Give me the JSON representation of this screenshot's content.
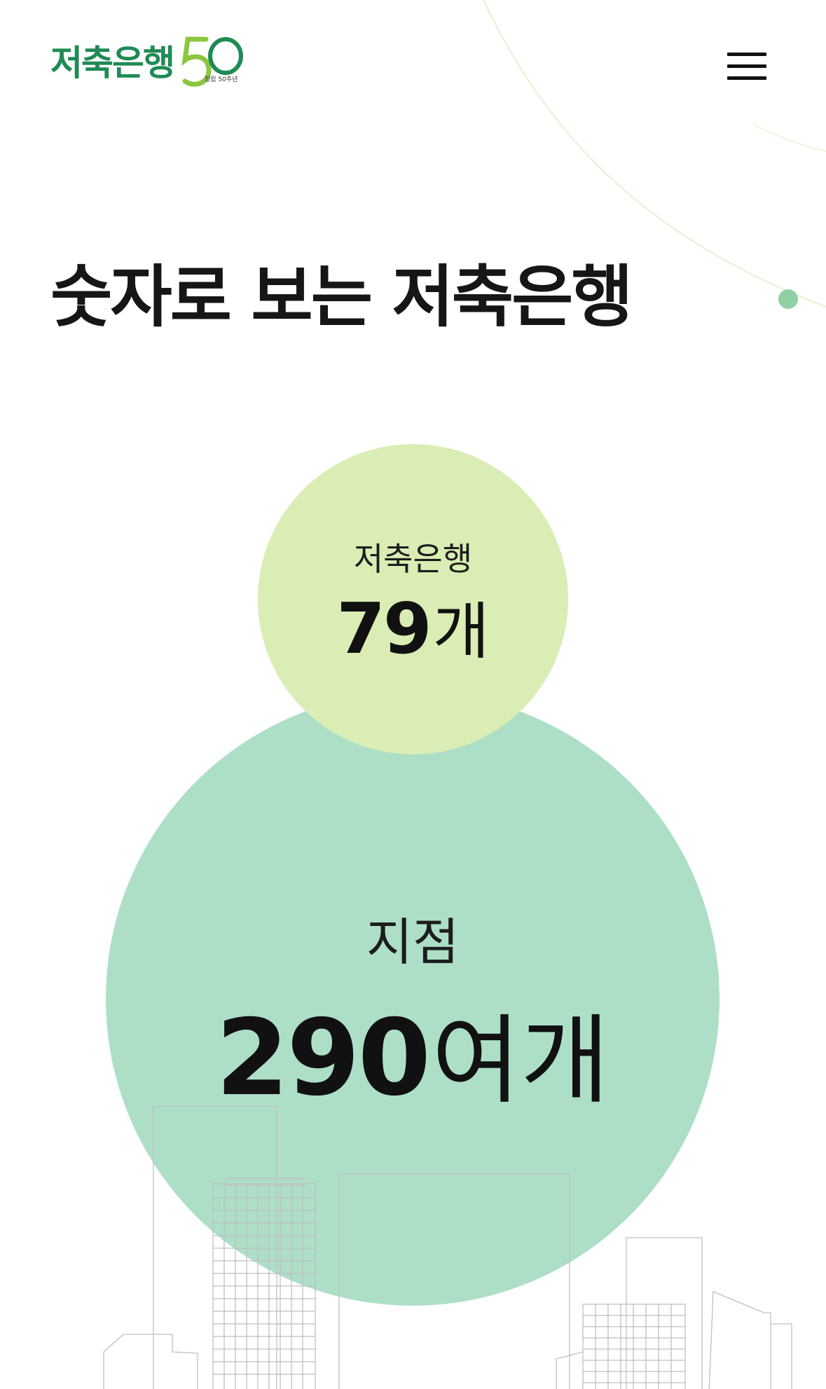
{
  "header": {
    "logo_text": "저축은행",
    "logo_anniversary": "창립 50주년",
    "menu_icon": "hamburger-menu-icon"
  },
  "main": {
    "title": "숫자로 보는 저축은행"
  },
  "stats": {
    "banks": {
      "label": "저축은행",
      "number": "79",
      "unit": "개"
    },
    "branches": {
      "label": "지점",
      "number": "290",
      "unit": "여개"
    }
  },
  "colors": {
    "brand_green": "#1f8a55",
    "logo_light_green": "#8cc63f",
    "bubble_banks": "#d9edb4",
    "bubble_branches": "#8dd2b2",
    "deco_dot": "#8fd0a4"
  }
}
